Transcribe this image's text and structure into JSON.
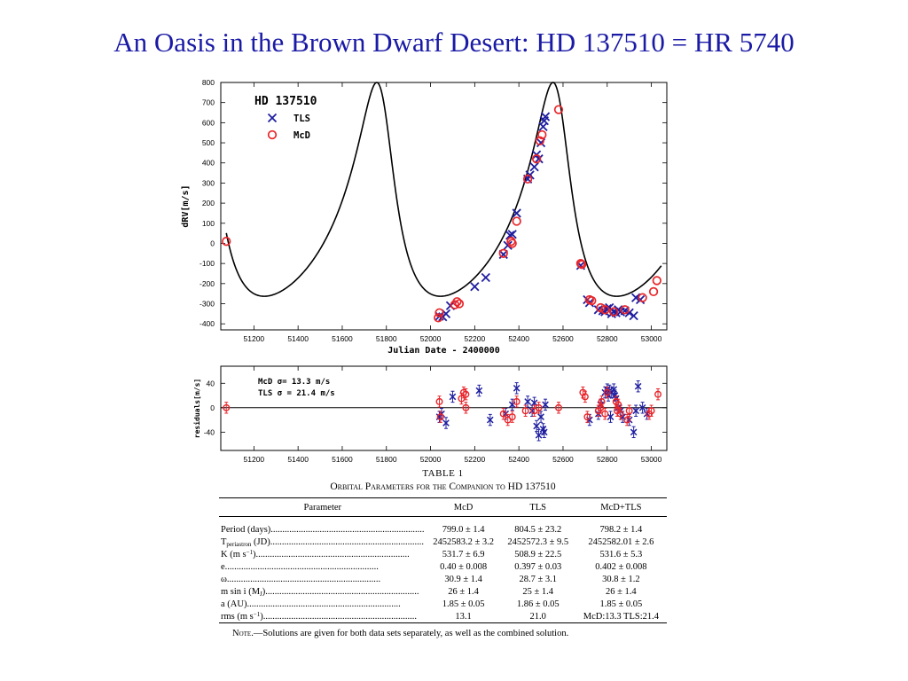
{
  "slide_title": "An Oasis in the Brown Dwarf Desert: HD 137510 = HR 5740",
  "chart_data": [
    {
      "type": "scatter",
      "title": "HD 137510",
      "xlabel": "Julian Date - 2400000",
      "ylabel": "dRV[m/s]",
      "xlim": [
        51050,
        53070
      ],
      "ylim": [
        -430,
        800
      ],
      "x_ticks": [
        51200,
        51400,
        51600,
        51800,
        52000,
        52200,
        52400,
        52600,
        52800,
        53000
      ],
      "y_ticks": [
        -400,
        -300,
        -200,
        -100,
        0,
        100,
        200,
        300,
        400,
        500,
        600,
        700,
        800
      ],
      "legend_position": "top-left",
      "colors": {
        "TLS": "#1f1fa0",
        "McD": "#e8262b",
        "model": "#000000"
      },
      "model_curve": {
        "name": "",
        "period_days": 798.2,
        "t_periastron": 52582.01,
        "K": 531.6,
        "e": 0.402,
        "omega_deg": 30.8,
        "offset": 85,
        "x_range": [
          51075,
          53045
        ]
      },
      "series": [
        {
          "name": "TLS",
          "marker": "x",
          "points": [
            [
              52040,
              -362
            ],
            [
              52055,
              -365
            ],
            [
              52070,
              -350
            ],
            [
              52090,
              -310
            ],
            [
              52200,
              -215
            ],
            [
              52250,
              -170
            ],
            [
              52330,
              -55
            ],
            [
              52350,
              -10
            ],
            [
              52360,
              40
            ],
            [
              52370,
              45
            ],
            [
              52390,
              150
            ],
            [
              52440,
              320
            ],
            [
              52450,
              340
            ],
            [
              52470,
              380
            ],
            [
              52480,
              440
            ],
            [
              52490,
              420
            ],
            [
              52500,
              500
            ],
            [
              52510,
              580
            ],
            [
              52515,
              610
            ],
            [
              52520,
              630
            ],
            [
              52680,
              -110
            ],
            [
              52710,
              -280
            ],
            [
              52720,
              -295
            ],
            [
              52760,
              -330
            ],
            [
              52780,
              -335
            ],
            [
              52790,
              -340
            ],
            [
              52800,
              -325
            ],
            [
              52810,
              -320
            ],
            [
              52820,
              -350
            ],
            [
              52830,
              -340
            ],
            [
              52840,
              -345
            ],
            [
              52850,
              -330
            ],
            [
              52860,
              -340
            ],
            [
              52880,
              -335
            ],
            [
              52900,
              -345
            ],
            [
              52920,
              -360
            ],
            [
              52930,
              -270
            ],
            [
              52950,
              -280
            ]
          ]
        },
        {
          "name": "McD",
          "marker": "o",
          "points": [
            [
              51075,
              10
            ],
            [
              52035,
              -370
            ],
            [
              52040,
              -345
            ],
            [
              52110,
              -305
            ],
            [
              52120,
              -290
            ],
            [
              52130,
              -300
            ],
            [
              52330,
              -50
            ],
            [
              52365,
              10
            ],
            [
              52370,
              0
            ],
            [
              52390,
              110
            ],
            [
              52440,
              320
            ],
            [
              52480,
              420
            ],
            [
              52495,
              510
            ],
            [
              52505,
              540
            ],
            [
              52580,
              665
            ],
            [
              52680,
              -100
            ],
            [
              52685,
              -105
            ],
            [
              52720,
              -280
            ],
            [
              52730,
              -285
            ],
            [
              52770,
              -320
            ],
            [
              52790,
              -330
            ],
            [
              52830,
              -340
            ],
            [
              52880,
              -330
            ],
            [
              52960,
              -270
            ],
            [
              53010,
              -240
            ],
            [
              53025,
              -185
            ]
          ]
        }
      ]
    },
    {
      "type": "scatter",
      "title": "",
      "xlabel": "",
      "ylabel": "residuals[m/s]",
      "xlim": [
        51050,
        53070
      ],
      "ylim": [
        -70,
        68
      ],
      "x_ticks": [
        51200,
        51400,
        51600,
        51800,
        52000,
        52200,
        52400,
        52600,
        52800,
        53000
      ],
      "y_ticks": [
        -40,
        0,
        40
      ],
      "annotations": [
        "McD σ=  13.3 m/s",
        "TLS  σ  = 21.4 m/s"
      ],
      "series": [
        {
          "name": "TLS",
          "marker": "x",
          "points": [
            [
              52040,
              -15
            ],
            [
              52050,
              -10
            ],
            [
              52070,
              -25
            ],
            [
              52100,
              18
            ],
            [
              52220,
              28
            ],
            [
              52270,
              -20
            ],
            [
              52340,
              -10
            ],
            [
              52370,
              5
            ],
            [
              52390,
              32
            ],
            [
              52440,
              10
            ],
            [
              52460,
              -5
            ],
            [
              52470,
              8
            ],
            [
              52480,
              -30
            ],
            [
              52490,
              -45
            ],
            [
              52500,
              -15
            ],
            [
              52510,
              -35
            ],
            [
              52515,
              -40
            ],
            [
              52520,
              5
            ],
            [
              52720,
              -20
            ],
            [
              52760,
              -10
            ],
            [
              52770,
              5
            ],
            [
              52790,
              25
            ],
            [
              52800,
              30
            ],
            [
              52805,
              20
            ],
            [
              52810,
              28
            ],
            [
              52815,
              -15
            ],
            [
              52820,
              25
            ],
            [
              52830,
              30
            ],
            [
              52835,
              20
            ],
            [
              52840,
              15
            ],
            [
              52850,
              0
            ],
            [
              52860,
              -5
            ],
            [
              52870,
              -15
            ],
            [
              52900,
              -20
            ],
            [
              52920,
              -40
            ],
            [
              52930,
              -5
            ],
            [
              52940,
              35
            ],
            [
              52960,
              0
            ],
            [
              52980,
              -10
            ]
          ]
        },
        {
          "name": "McD",
          "marker": "o",
          "points": [
            [
              51075,
              0
            ],
            [
              52040,
              10
            ],
            [
              52045,
              -15
            ],
            [
              52140,
              15
            ],
            [
              52150,
              25
            ],
            [
              52160,
              22
            ],
            [
              52160,
              0
            ],
            [
              52330,
              -10
            ],
            [
              52350,
              -20
            ],
            [
              52370,
              -15
            ],
            [
              52390,
              10
            ],
            [
              52430,
              -5
            ],
            [
              52470,
              -5
            ],
            [
              52490,
              0
            ],
            [
              52580,
              0
            ],
            [
              52690,
              25
            ],
            [
              52700,
              18
            ],
            [
              52710,
              -15
            ],
            [
              52760,
              -5
            ],
            [
              52770,
              0
            ],
            [
              52775,
              10
            ],
            [
              52790,
              -10
            ],
            [
              52800,
              25
            ],
            [
              52840,
              10
            ],
            [
              52845,
              -5
            ],
            [
              52850,
              5
            ],
            [
              52860,
              -10
            ],
            [
              52890,
              -20
            ],
            [
              52900,
              -5
            ],
            [
              52990,
              -10
            ],
            [
              53000,
              -5
            ],
            [
              53030,
              22
            ]
          ]
        }
      ]
    }
  ],
  "table": {
    "label": "TABLE 1",
    "caption": "Orbital Parameters for the Companion to HD 137510",
    "columns": [
      "Parameter",
      "McD",
      "TLS",
      "McD+TLS"
    ],
    "rows": [
      {
        "param": "Period (days)",
        "mcd": "799.0 ± 1.4",
        "tls": "804.5 ± 23.2",
        "comb": "798.2 ± 1.4"
      },
      {
        "param_pre": "T",
        "param_sub": "periastron",
        "param_post": " (JD)",
        "mcd": "2452583.2 ± 3.2",
        "tls": "2452572.3 ± 9.5",
        "comb": "2452582.01 ± 2.6"
      },
      {
        "param_pre": "K (m s",
        "param_sup": "−1",
        "param_post": ")",
        "mcd": "531.7 ± 6.9",
        "tls": "508.9 ± 22.5",
        "comb": "531.6 ± 5.3"
      },
      {
        "param": "e",
        "mcd": "0.40 ± 0.008",
        "tls": "0.397 ± 0.03",
        "comb": "0.402 ± 0.008"
      },
      {
        "param": "ω",
        "mcd": "30.9 ± 1.4",
        "tls": "28.7 ± 3.1",
        "comb": "30.8 ± 1.2"
      },
      {
        "param_pre": "m sin i (M",
        "param_sub": "J",
        "param_post": ")",
        "mcd": "26 ± 1.4",
        "tls": "25 ± 1.4",
        "comb": "26 ± 1.4"
      },
      {
        "param": "a (AU)",
        "mcd": "1.85 ± 0.05",
        "tls": "1.86 ± 0.05",
        "comb": "1.85 ± 0.05"
      },
      {
        "param_pre": "rms (m s",
        "param_sup": "−1",
        "param_post": ")",
        "mcd": "13.1",
        "tls": "21.0",
        "comb": "McD:13.3 TLS:21.4"
      }
    ],
    "note_lead": "Note.",
    "note_text": "—Solutions are given for both data sets separately, as well as the combined solution."
  }
}
